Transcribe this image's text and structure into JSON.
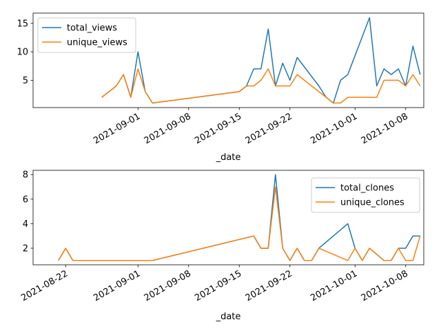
{
  "chart_data": [
    {
      "type": "line",
      "xlabel": "_date",
      "ylabel": "",
      "title": "",
      "x_range": [
        "2021-08-18",
        "2021-10-10"
      ],
      "ylim": [
        0.2,
        16.8
      ],
      "yticks": [
        5,
        10,
        15
      ],
      "xticks": [
        "2021-09-01",
        "2021-09-08",
        "2021-09-15",
        "2021-09-22",
        "2021-10-01",
        "2021-10-08"
      ],
      "legend_position": "top-left",
      "grid": false,
      "series": [
        {
          "name": "total_views",
          "color": "#1f77b4",
          "points": [
            [
              "2021-08-27",
              2
            ],
            [
              "2021-08-29",
              4
            ],
            [
              "2021-08-30",
              6
            ],
            [
              "2021-08-31",
              2
            ],
            [
              "2021-09-01",
              10
            ],
            [
              "2021-09-02",
              3
            ],
            [
              "2021-09-03",
              1
            ],
            [
              "2021-09-15",
              3
            ],
            [
              "2021-09-16",
              4
            ],
            [
              "2021-09-17",
              7
            ],
            [
              "2021-09-18",
              7
            ],
            [
              "2021-09-19",
              14
            ],
            [
              "2021-09-20",
              4
            ],
            [
              "2021-09-21",
              8
            ],
            [
              "2021-09-22",
              5
            ],
            [
              "2021-09-23",
              9
            ],
            [
              "2021-09-26",
              4
            ],
            [
              "2021-09-27",
              2
            ],
            [
              "2021-09-28",
              1
            ],
            [
              "2021-09-29",
              5
            ],
            [
              "2021-09-30",
              6
            ],
            [
              "2021-10-03",
              16
            ],
            [
              "2021-10-04",
              4
            ],
            [
              "2021-10-05",
              7
            ],
            [
              "2021-10-06",
              6
            ],
            [
              "2021-10-07",
              7
            ],
            [
              "2021-10-08",
              4
            ],
            [
              "2021-10-09",
              11
            ],
            [
              "2021-10-10",
              6
            ]
          ]
        },
        {
          "name": "unique_views",
          "color": "#ff7f0e",
          "points": [
            [
              "2021-08-27",
              2
            ],
            [
              "2021-08-29",
              4
            ],
            [
              "2021-08-30",
              6
            ],
            [
              "2021-08-31",
              2
            ],
            [
              "2021-09-01",
              7
            ],
            [
              "2021-09-02",
              3
            ],
            [
              "2021-09-03",
              1
            ],
            [
              "2021-09-15",
              3
            ],
            [
              "2021-09-16",
              4
            ],
            [
              "2021-09-17",
              4
            ],
            [
              "2021-09-18",
              5
            ],
            [
              "2021-09-19",
              7
            ],
            [
              "2021-09-20",
              4
            ],
            [
              "2021-09-21",
              4
            ],
            [
              "2021-09-22",
              4
            ],
            [
              "2021-09-23",
              6
            ],
            [
              "2021-09-26",
              3
            ],
            [
              "2021-09-27",
              2
            ],
            [
              "2021-09-28",
              1
            ],
            [
              "2021-09-29",
              1
            ],
            [
              "2021-09-30",
              2
            ],
            [
              "2021-10-03",
              2
            ],
            [
              "2021-10-04",
              2
            ],
            [
              "2021-10-05",
              5
            ],
            [
              "2021-10-06",
              5
            ],
            [
              "2021-10-07",
              5
            ],
            [
              "2021-10-08",
              4
            ],
            [
              "2021-10-09",
              6
            ],
            [
              "2021-10-10",
              4
            ]
          ]
        }
      ]
    },
    {
      "type": "line",
      "xlabel": "_date",
      "ylabel": "",
      "title": "",
      "x_range": [
        "2021-08-18",
        "2021-10-10"
      ],
      "ylim": [
        0.65,
        8.35
      ],
      "yticks": [
        2,
        4,
        6,
        8
      ],
      "xticks": [
        "2021-08-22",
        "2021-09-01",
        "2021-09-08",
        "2021-09-15",
        "2021-09-22",
        "2021-10-01",
        "2021-10-08"
      ],
      "legend_position": "top-right",
      "grid": false,
      "series": [
        {
          "name": "total_clones",
          "color": "#1f77b4",
          "points": [
            [
              "2021-08-21",
              1
            ],
            [
              "2021-08-22",
              2
            ],
            [
              "2021-08-23",
              1
            ],
            [
              "2021-09-03",
              1
            ],
            [
              "2021-09-17",
              3
            ],
            [
              "2021-09-18",
              2
            ],
            [
              "2021-09-19",
              2
            ],
            [
              "2021-09-20",
              8
            ],
            [
              "2021-09-21",
              2
            ],
            [
              "2021-09-22",
              1
            ],
            [
              "2021-09-23",
              2
            ],
            [
              "2021-09-24",
              1
            ],
            [
              "2021-09-25",
              1
            ],
            [
              "2021-09-26",
              2
            ],
            [
              "2021-09-30",
              4
            ],
            [
              "2021-10-01",
              2
            ],
            [
              "2021-10-02",
              1
            ],
            [
              "2021-10-03",
              2
            ],
            [
              "2021-10-05",
              1
            ],
            [
              "2021-10-06",
              1
            ],
            [
              "2021-10-07",
              2
            ],
            [
              "2021-10-08",
              2
            ],
            [
              "2021-10-09",
              3
            ],
            [
              "2021-10-10",
              3
            ]
          ]
        },
        {
          "name": "unique_clones",
          "color": "#ff7f0e",
          "points": [
            [
              "2021-08-21",
              1
            ],
            [
              "2021-08-22",
              2
            ],
            [
              "2021-08-23",
              1
            ],
            [
              "2021-09-03",
              1
            ],
            [
              "2021-09-17",
              3
            ],
            [
              "2021-09-18",
              2
            ],
            [
              "2021-09-19",
              2
            ],
            [
              "2021-09-20",
              7
            ],
            [
              "2021-09-21",
              2
            ],
            [
              "2021-09-22",
              1
            ],
            [
              "2021-09-23",
              2
            ],
            [
              "2021-09-24",
              1
            ],
            [
              "2021-09-25",
              1
            ],
            [
              "2021-09-26",
              2
            ],
            [
              "2021-09-30",
              1
            ],
            [
              "2021-10-01",
              2
            ],
            [
              "2021-10-02",
              1
            ],
            [
              "2021-10-03",
              2
            ],
            [
              "2021-10-05",
              1
            ],
            [
              "2021-10-06",
              1
            ],
            [
              "2021-10-07",
              2
            ],
            [
              "2021-10-08",
              1
            ],
            [
              "2021-10-09",
              1
            ],
            [
              "2021-10-10",
              3
            ]
          ]
        }
      ]
    }
  ]
}
